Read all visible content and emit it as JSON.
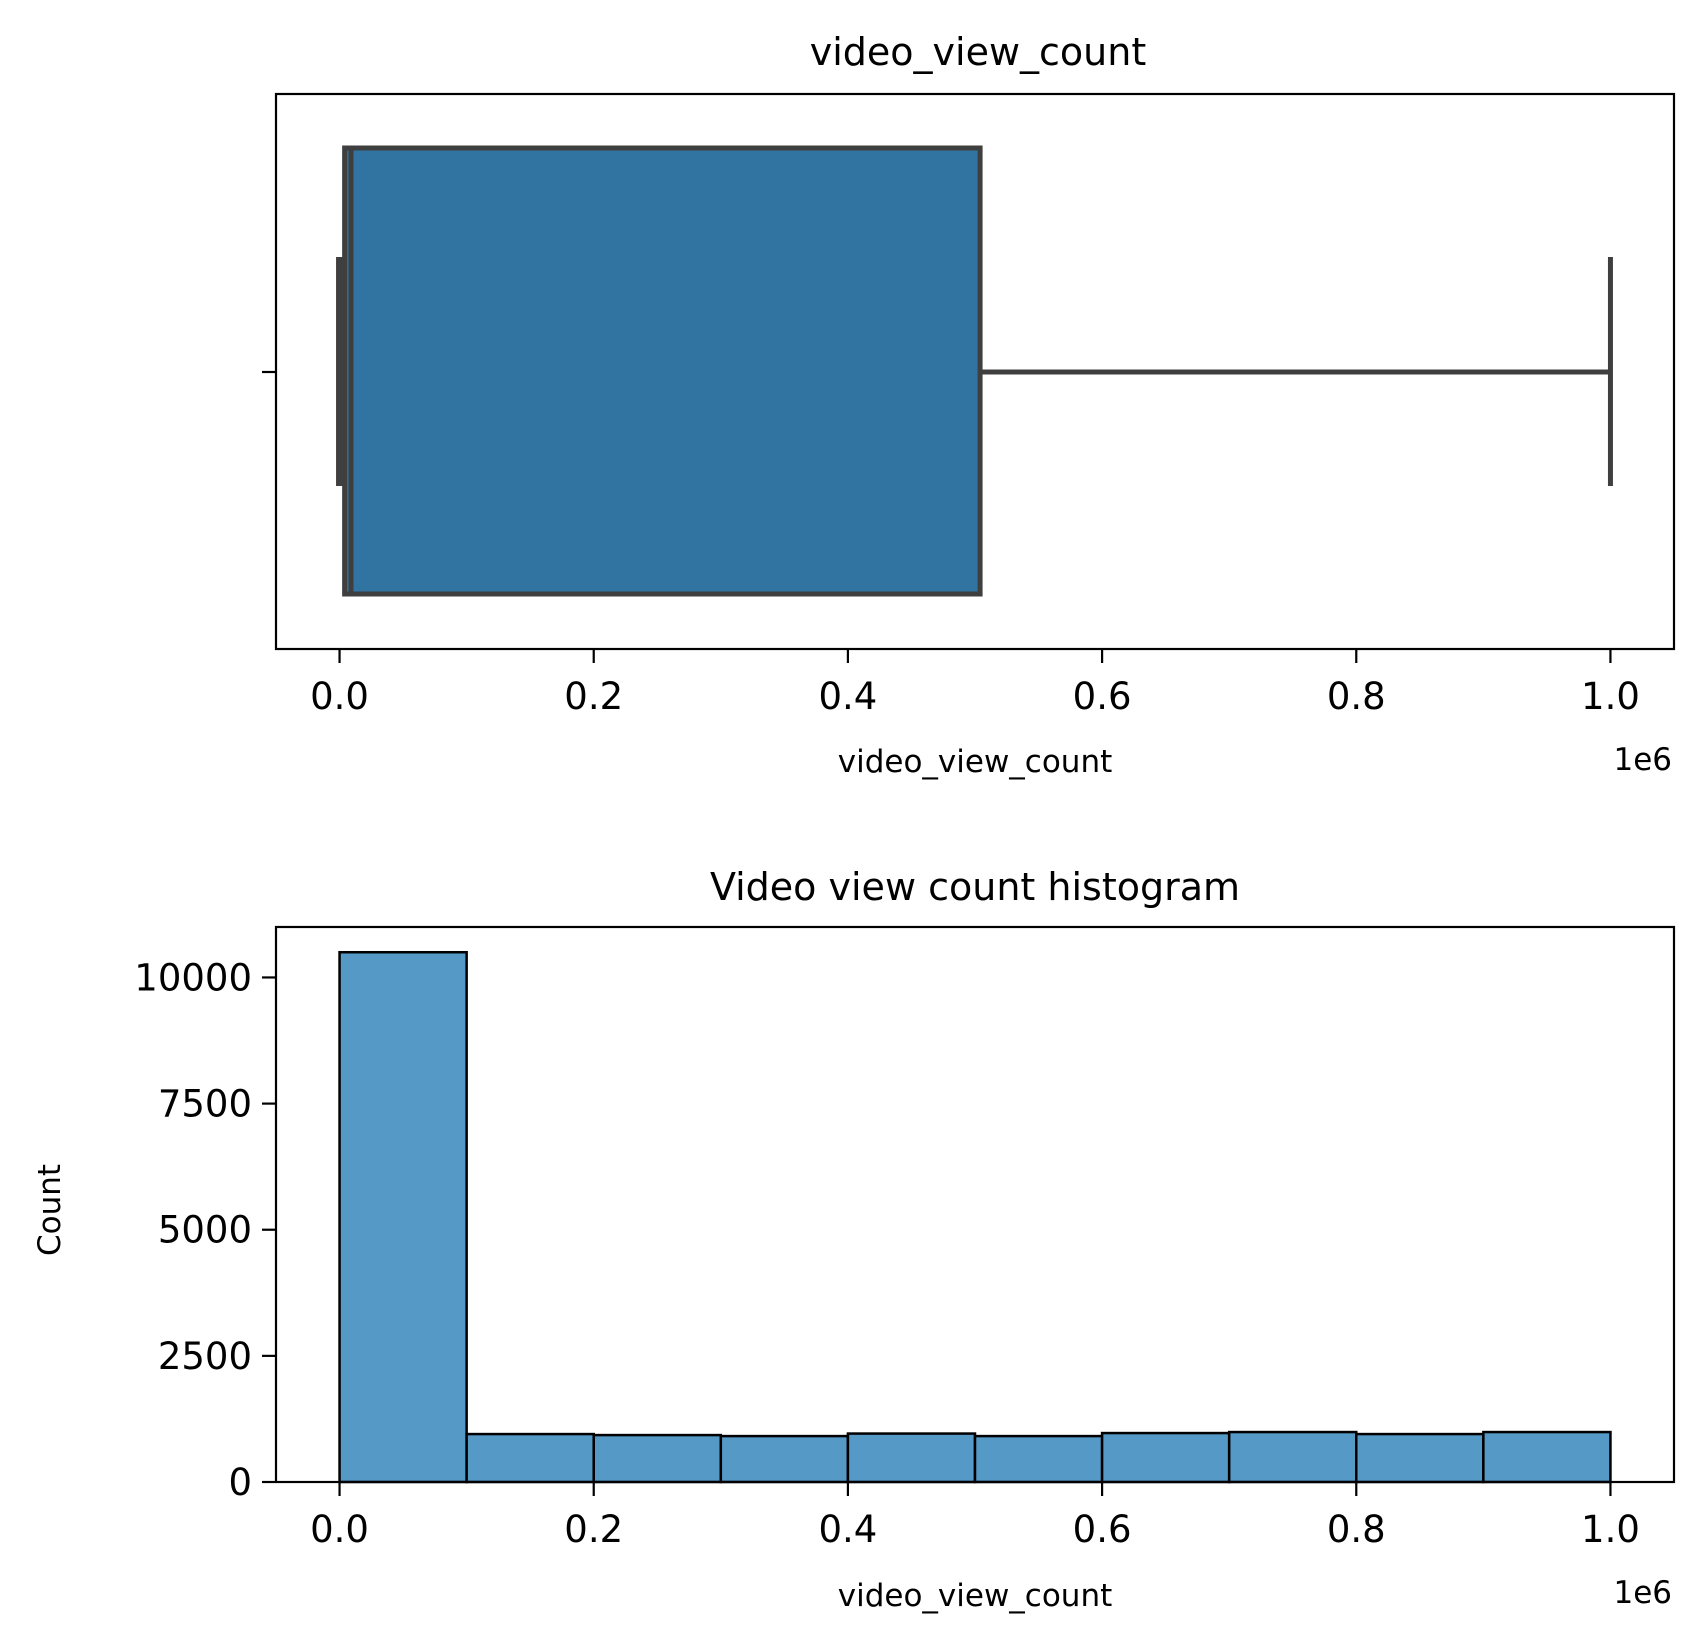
{
  "chart_data": [
    {
      "type": "box",
      "title": "video_view_count",
      "xlabel": "video_view_count",
      "ylabel": "",
      "x_offset_label": "1e6",
      "xlim": [
        -0.05,
        1.05
      ],
      "xticks": [
        0.0,
        0.2,
        0.4,
        0.6,
        0.8,
        1.0
      ],
      "xtick_labels": [
        "0.0",
        "0.2",
        "0.4",
        "0.6",
        "0.8",
        "1.0"
      ],
      "box": {
        "whisker_low": 0.0,
        "q1": 0.004,
        "median": 0.009,
        "q3": 0.504,
        "whisker_high": 1.0
      },
      "box_color": "#3274a1",
      "line_color": "#3f3f3f"
    },
    {
      "type": "histogram",
      "title": "Video view count histogram",
      "xlabel": "video_view_count",
      "ylabel": "Count",
      "x_offset_label": "1e6",
      "xlim": [
        -0.05,
        1.05
      ],
      "ylim": [
        0,
        11000
      ],
      "xticks": [
        0.0,
        0.2,
        0.4,
        0.6,
        0.8,
        1.0
      ],
      "xtick_labels": [
        "0.0",
        "0.2",
        "0.4",
        "0.6",
        "0.8",
        "1.0"
      ],
      "yticks": [
        0,
        2500,
        5000,
        7500,
        10000
      ],
      "ytick_labels": [
        "0",
        "2500",
        "5000",
        "7500",
        "10000"
      ],
      "bin_edges": [
        0.0,
        0.1,
        0.2,
        0.3,
        0.4,
        0.5,
        0.6,
        0.7,
        0.8,
        0.9,
        1.0
      ],
      "counts": [
        10500,
        950,
        930,
        910,
        960,
        910,
        970,
        990,
        950,
        990
      ],
      "bar_color": "#5599c7",
      "edge_color": "#000000"
    }
  ]
}
